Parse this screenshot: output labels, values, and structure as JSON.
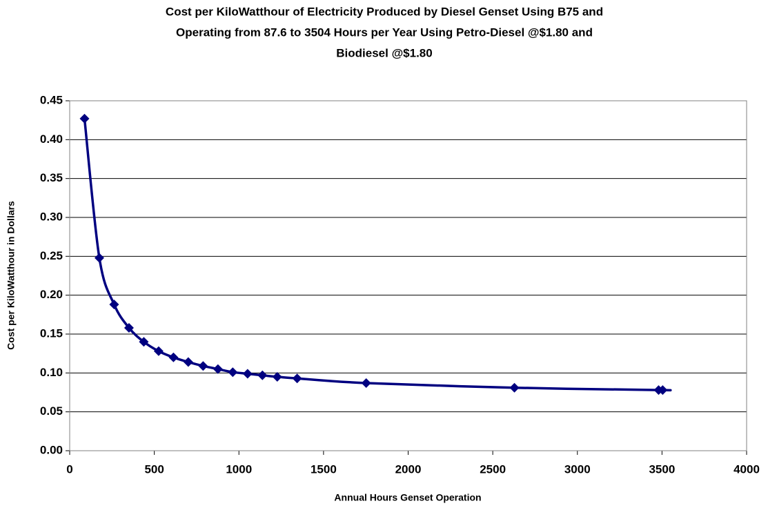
{
  "chart_data": {
    "type": "line",
    "title": [
      "Cost per KiloWatthour of Electricity Produced by Diesel Genset Using B75 and",
      "Operating from 87.6 to 3504 Hours per Year Using Petro-Diesel @$1.80 and",
      "Biodiesel @$1.80"
    ],
    "x_label": "Annual Hours Genset Operation",
    "y_label": "Cost per KiloWatthour in Dollars",
    "x": [
      87.6,
      175.2,
      262.8,
      350.4,
      438,
      525.6,
      613.2,
      700.8,
      788.4,
      876,
      963.6,
      1051.2,
      1138.8,
      1226.4,
      1344,
      1752,
      2628,
      3480,
      3504
    ],
    "series": [
      {
        "color": "#000080",
        "values": [
          0.427,
          0.248,
          0.188,
          0.158,
          0.14,
          0.128,
          0.12,
          0.114,
          0.109,
          0.105,
          0.101,
          0.099,
          0.097,
          0.095,
          0.093,
          0.087,
          0.081,
          0.078,
          0.078
        ]
      }
    ],
    "xlim": [
      0,
      4000
    ],
    "xticks": [
      0,
      500,
      1000,
      1500,
      2000,
      2500,
      3000,
      3500,
      4000
    ],
    "ylim": [
      0,
      0.45
    ],
    "yticks": [
      {
        "value": 0,
        "label": "0.00"
      },
      {
        "value": 0.05,
        "label": "0.05"
      },
      {
        "value": 0.1,
        "label": "0.10"
      },
      {
        "value": 0.15,
        "label": "0.15"
      },
      {
        "value": 0.2,
        "label": "0.20"
      },
      {
        "value": 0.25,
        "label": "0.25"
      },
      {
        "value": 0.3,
        "label": "0.30"
      },
      {
        "value": 0.35,
        "label": "0.35"
      },
      {
        "value": 0.4,
        "label": "0.40"
      },
      {
        "value": 0.45,
        "label": "0.45"
      }
    ],
    "grid": true,
    "smooth": true
  }
}
